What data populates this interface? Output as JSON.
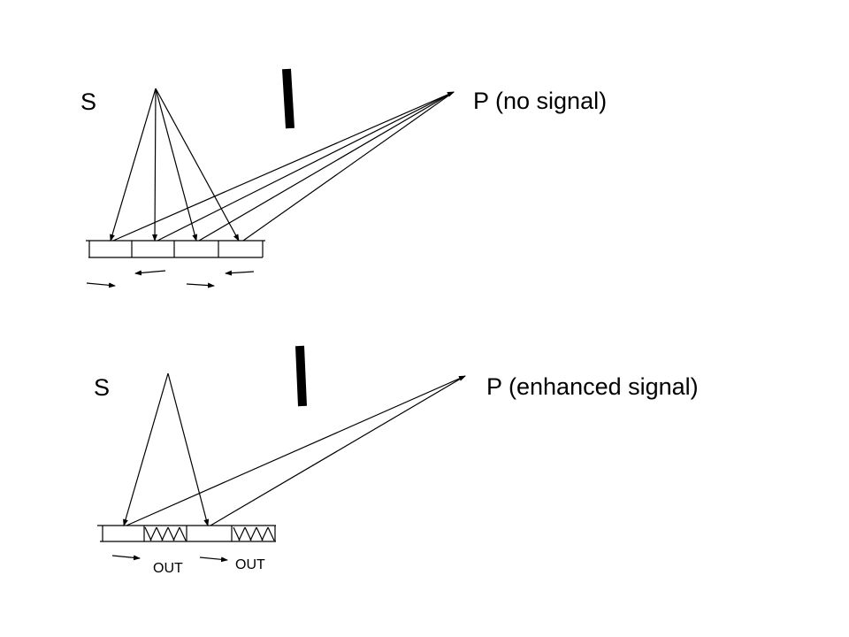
{
  "top_panel": {
    "source_label": "S",
    "point_label": "P (no signal)"
  },
  "bottom_panel": {
    "source_label": "S",
    "point_label": "P (enhanced signal)",
    "out_label_1": "OUT",
    "out_label_2": "OUT"
  },
  "colors": {
    "ink": "#000000",
    "background": "#ffffff"
  }
}
